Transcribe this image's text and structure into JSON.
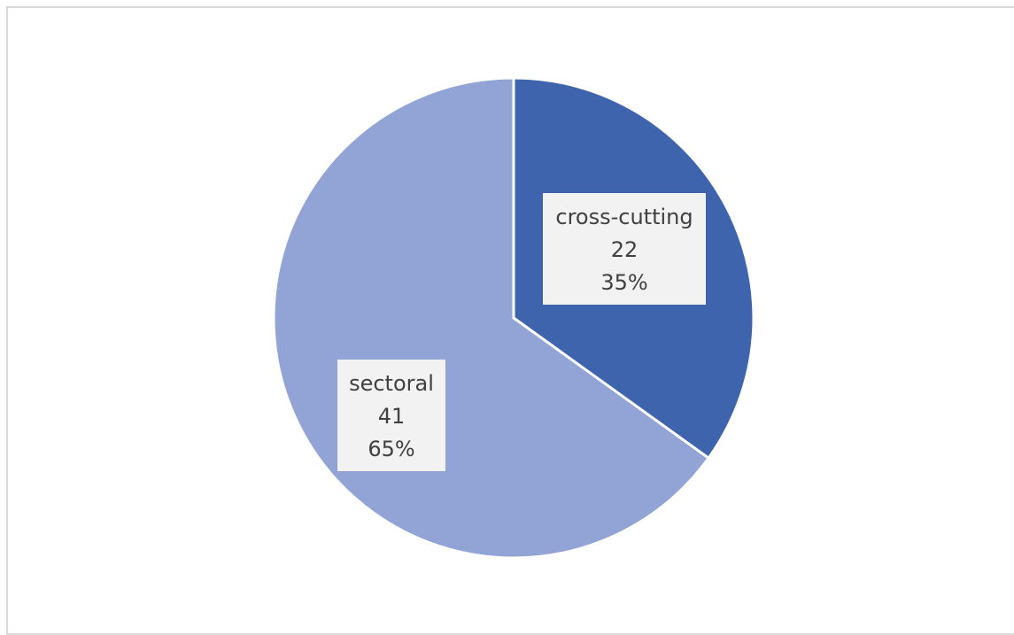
{
  "chart_data": {
    "type": "pie",
    "title": "",
    "categories": [
      "cross-cutting",
      "sectoral"
    ],
    "values": [
      22,
      41
    ],
    "percentages": [
      "35%",
      "65%"
    ],
    "colors": [
      "#3e64ae",
      "#91a4d5"
    ],
    "slice_border_color": "#ffffff",
    "start_angle_deg": 0,
    "direction": "clockwise",
    "legend": "none",
    "data_labels": [
      {
        "category": "cross-cutting",
        "value": "22",
        "percent": "35%"
      },
      {
        "category": "sectoral",
        "value": "41",
        "percent": "65%"
      }
    ]
  }
}
